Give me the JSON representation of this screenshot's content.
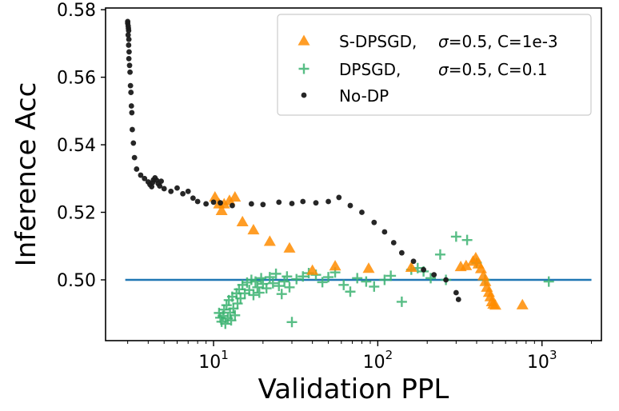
{
  "chart_data": {
    "type": "scatter",
    "title": "",
    "xlabel": "Validation PPL",
    "ylabel": "Inference Acc",
    "xscale": "log",
    "xlim": [
      2.2,
      2300
    ],
    "ylim": [
      0.482,
      0.5805
    ],
    "xticks": [
      {
        "value": 10,
        "base": "10",
        "exp": "1"
      },
      {
        "value": 100,
        "base": "10",
        "exp": "2"
      },
      {
        "value": 1000,
        "base": "10",
        "exp": "3"
      }
    ],
    "yticks": [
      {
        "value": 0.5,
        "label": "0.50"
      },
      {
        "value": 0.52,
        "label": "0.52"
      },
      {
        "value": 0.54,
        "label": "0.54"
      },
      {
        "value": 0.56,
        "label": "0.56"
      },
      {
        "value": 0.58,
        "label": "0.58"
      }
    ],
    "hline": {
      "y": 0.5,
      "x_from": 2.9,
      "x_to": 2000,
      "color": "#1f77b4"
    },
    "legend_position": "top-right",
    "series": [
      {
        "name": "S-DPSGD",
        "legend_name": "S-DPSGD, ",
        "legend_sigma": "σ=0.5, C=1e-3",
        "marker": "triangle",
        "color": "#ff8c00",
        "points": [
          [
            10.2,
            0.5245
          ],
          [
            10.8,
            0.5225
          ],
          [
            11.2,
            0.5205
          ],
          [
            11.6,
            0.5225
          ],
          [
            12.5,
            0.5235
          ],
          [
            13.5,
            0.5245
          ],
          [
            15.0,
            0.5172
          ],
          [
            17.5,
            0.5148
          ],
          [
            22,
            0.5114
          ],
          [
            29,
            0.5094
          ],
          [
            40,
            0.5028
          ],
          [
            55,
            0.5041
          ],
          [
            88,
            0.5034
          ],
          [
            160,
            0.5037
          ],
          [
            320,
            0.5039
          ],
          [
            345,
            0.5042
          ],
          [
            380,
            0.5055
          ],
          [
            395,
            0.5065
          ],
          [
            410,
            0.5047
          ],
          [
            425,
            0.5033
          ],
          [
            440,
            0.5012
          ],
          [
            452,
            0.4995
          ],
          [
            462,
            0.4978
          ],
          [
            475,
            0.4963
          ],
          [
            485,
            0.495
          ],
          [
            495,
            0.4935
          ],
          [
            505,
            0.4928
          ],
          [
            520,
            0.4925
          ],
          [
            760,
            0.4926
          ]
        ]
      },
      {
        "name": "DPSGD",
        "legend_name": "DPSGD,",
        "legend_sigma": "σ=0.5, C=0.1",
        "marker": "plus",
        "color": "#3cb371",
        "points": [
          [
            10.8,
            0.4902
          ],
          [
            11.0,
            0.4888
          ],
          [
            11.2,
            0.4876
          ],
          [
            11.4,
            0.4893
          ],
          [
            11.6,
            0.4912
          ],
          [
            11.8,
            0.487
          ],
          [
            12.0,
            0.4925
          ],
          [
            12.2,
            0.4886
          ],
          [
            12.4,
            0.494
          ],
          [
            12.6,
            0.4903
          ],
          [
            12.8,
            0.488
          ],
          [
            13.0,
            0.495
          ],
          [
            13.2,
            0.4915
          ],
          [
            13.5,
            0.4895
          ],
          [
            13.8,
            0.496
          ],
          [
            14.0,
            0.493
          ],
          [
            14.3,
            0.4972
          ],
          [
            14.6,
            0.4945
          ],
          [
            15.0,
            0.4985
          ],
          [
            15.5,
            0.496
          ],
          [
            16.0,
            0.4992
          ],
          [
            16.5,
            0.497
          ],
          [
            17.0,
            0.5
          ],
          [
            17.5,
            0.4955
          ],
          [
            18.0,
            0.4995
          ],
          [
            18.5,
            0.4978
          ],
          [
            19.0,
            0.4962
          ],
          [
            19.5,
            0.5005
          ],
          [
            20.0,
            0.4988
          ],
          [
            21.0,
            0.4975
          ],
          [
            22.0,
            0.5008
          ],
          [
            23.0,
            0.499
          ],
          [
            24.0,
            0.5018
          ],
          [
            25.0,
            0.4982
          ],
          [
            26.0,
            0.4958
          ],
          [
            27.0,
            0.4995
          ],
          [
            28.0,
            0.501
          ],
          [
            29.0,
            0.4978
          ],
          [
            30.0,
            0.4875
          ],
          [
            32.0,
            0.5002
          ],
          [
            35.0,
            0.501
          ],
          [
            38.0,
            0.502
          ],
          [
            42.0,
            0.5015
          ],
          [
            46.0,
            0.4993
          ],
          [
            50.0,
            0.5008
          ],
          [
            55.0,
            0.5022
          ],
          [
            62.0,
            0.4985
          ],
          [
            68.0,
            0.4965
          ],
          [
            75.0,
            0.5005
          ],
          [
            85.0,
            0.4995
          ],
          [
            95.0,
            0.498
          ],
          [
            110.0,
            0.5
          ],
          [
            120.0,
            0.5012
          ],
          [
            140.0,
            0.4935
          ],
          [
            160.0,
            0.503
          ],
          [
            175.0,
            0.5035
          ],
          [
            190.0,
            0.5025
          ],
          [
            210.0,
            0.5005
          ],
          [
            240.0,
            0.5075
          ],
          [
            260.0,
            0.5
          ],
          [
            300.0,
            0.5128
          ],
          [
            350.0,
            0.5118
          ],
          [
            400.0,
            0.505
          ],
          [
            450.0,
            0.5
          ],
          [
            1100.0,
            0.4995
          ]
        ]
      },
      {
        "name": "No-DP",
        "legend_name": "No-DP",
        "legend_sigma": "",
        "marker": "dot",
        "color": "#1a1a1a",
        "points": [
          [
            3.0,
            0.5765
          ],
          [
            3.0,
            0.576
          ],
          [
            3.02,
            0.5752
          ],
          [
            3.03,
            0.5745
          ],
          [
            3.04,
            0.5738
          ],
          [
            3.02,
            0.5725
          ],
          [
            3.05,
            0.5712
          ],
          [
            3.04,
            0.5695
          ],
          [
            3.06,
            0.5675
          ],
          [
            3.05,
            0.5655
          ],
          [
            3.08,
            0.5635
          ],
          [
            3.1,
            0.5615
          ],
          [
            3.12,
            0.5575
          ],
          [
            3.14,
            0.5555
          ],
          [
            3.16,
            0.5515
          ],
          [
            3.18,
            0.5495
          ],
          [
            3.2,
            0.5445
          ],
          [
            3.25,
            0.5405
          ],
          [
            3.3,
            0.5362
          ],
          [
            3.4,
            0.5328
          ],
          [
            3.6,
            0.531
          ],
          [
            3.8,
            0.53
          ],
          [
            4.0,
            0.529
          ],
          [
            4.1,
            0.5282
          ],
          [
            4.2,
            0.5276
          ],
          [
            4.25,
            0.5288
          ],
          [
            4.3,
            0.5296
          ],
          [
            4.4,
            0.5302
          ],
          [
            4.5,
            0.5295
          ],
          [
            4.6,
            0.5285
          ],
          [
            4.7,
            0.5278
          ],
          [
            4.8,
            0.5292
          ],
          [
            5.0,
            0.527
          ],
          [
            5.5,
            0.5262
          ],
          [
            6.0,
            0.5272
          ],
          [
            6.5,
            0.5255
          ],
          [
            7.0,
            0.5262
          ],
          [
            7.5,
            0.5242
          ],
          [
            8.0,
            0.5232
          ],
          [
            9.0,
            0.5225
          ],
          [
            10.0,
            0.523
          ],
          [
            11.0,
            0.5228
          ],
          [
            13.0,
            0.522
          ],
          [
            17.0,
            0.5225
          ],
          [
            20.0,
            0.5223
          ],
          [
            25.0,
            0.523
          ],
          [
            30.0,
            0.5226
          ],
          [
            35.0,
            0.5232
          ],
          [
            42.0,
            0.5228
          ],
          [
            50.0,
            0.5232
          ],
          [
            58.0,
            0.5244
          ],
          [
            68.0,
            0.522
          ],
          [
            80.0,
            0.52
          ],
          [
            95.0,
            0.517
          ],
          [
            110.0,
            0.5142
          ],
          [
            125.0,
            0.511
          ],
          [
            140.0,
            0.508
          ],
          [
            165.0,
            0.5055
          ],
          [
            190.0,
            0.503
          ],
          [
            220.0,
            0.5015
          ],
          [
            260.0,
            0.5
          ],
          [
            300.0,
            0.4962
          ],
          [
            310.0,
            0.4942
          ]
        ]
      }
    ]
  }
}
